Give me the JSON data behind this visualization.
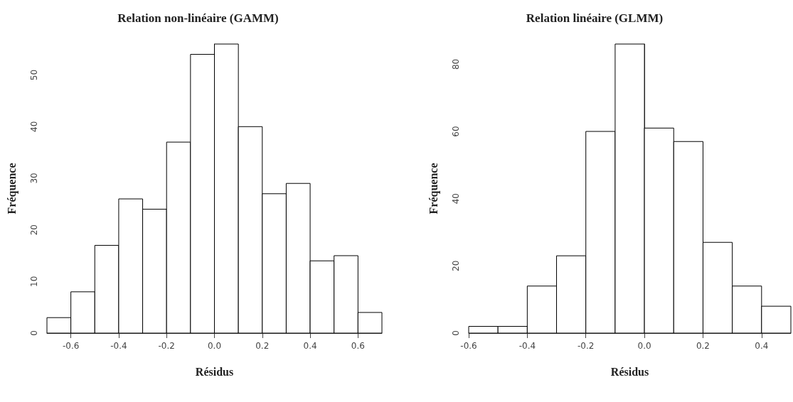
{
  "chart_data": [
    {
      "type": "histogram",
      "title": "Relation non-linéaire (GAMM)",
      "xlabel": "Résidus",
      "ylabel": "Fréquence",
      "color": "#ffffff",
      "bins": [
        -0.7,
        -0.6,
        -0.5,
        -0.4,
        -0.3,
        -0.2,
        -0.1,
        0.0,
        0.1,
        0.2,
        0.3,
        0.4,
        0.5,
        0.6,
        0.7
      ],
      "values": [
        3,
        8,
        17,
        26,
        24,
        37,
        54,
        56,
        40,
        27,
        29,
        14,
        15,
        4
      ],
      "xlim": [
        -0.7,
        0.7
      ],
      "xticks": [
        -0.6,
        -0.4,
        -0.2,
        {
          "value": 0,
          "label": "0.0"
        },
        0.2,
        0.4,
        0.6
      ],
      "ylim": [
        0,
        56
      ],
      "yticks": [
        0,
        10,
        20,
        30,
        40,
        50
      ]
    },
    {
      "type": "histogram",
      "title": "Relation linéaire (GLMM)",
      "xlabel": "Résidus",
      "ylabel": "Fréquence",
      "color": "#ffffff",
      "bins": [
        -0.6,
        -0.5,
        -0.4,
        -0.3,
        -0.2,
        -0.1,
        0.0,
        0.1,
        0.2,
        0.3,
        0.4,
        0.5
      ],
      "values": [
        2,
        2,
        14,
        23,
        60,
        86,
        61,
        57,
        27,
        14,
        8
      ],
      "xlim": [
        -0.6,
        0.5
      ],
      "xticks": [
        -0.6,
        -0.4,
        -0.2,
        {
          "value": 0,
          "label": "0.0"
        },
        0.2,
        0.4
      ],
      "ylim": [
        0,
        86
      ],
      "yticks": [
        0,
        20,
        40,
        60,
        80
      ]
    }
  ]
}
